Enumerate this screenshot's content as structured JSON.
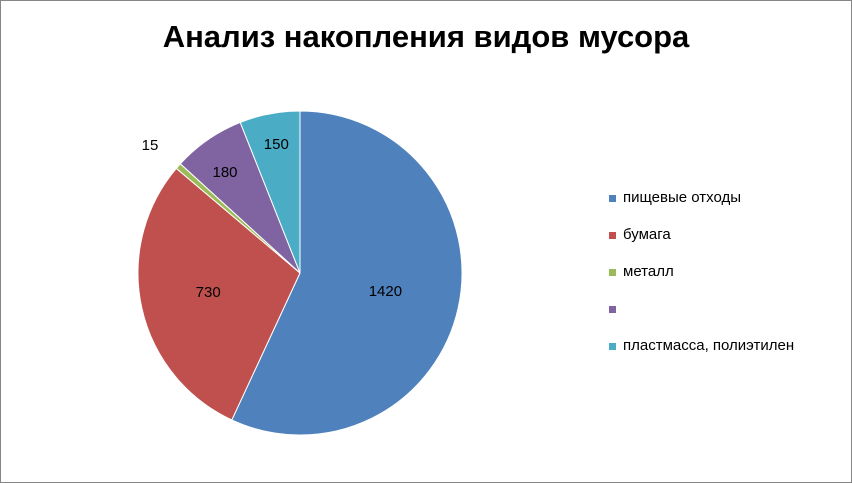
{
  "chart_data": {
    "type": "pie",
    "title": "Анализ накопления видов мусора",
    "categories": [
      "пищевые отходы",
      "бумага",
      "металл",
      "",
      "пластмасса, полиэтилен"
    ],
    "values": [
      1420,
      730,
      15,
      180,
      150
    ],
    "data_labels": [
      "1420",
      "730",
      "15",
      "180",
      "150"
    ],
    "colors": [
      "#4F81BD",
      "#C0504D",
      "#9BBB59",
      "#8064A2",
      "#4BACC6"
    ],
    "legend_position": "right",
    "start_angle": "12 o'clock",
    "direction": "clockwise"
  }
}
